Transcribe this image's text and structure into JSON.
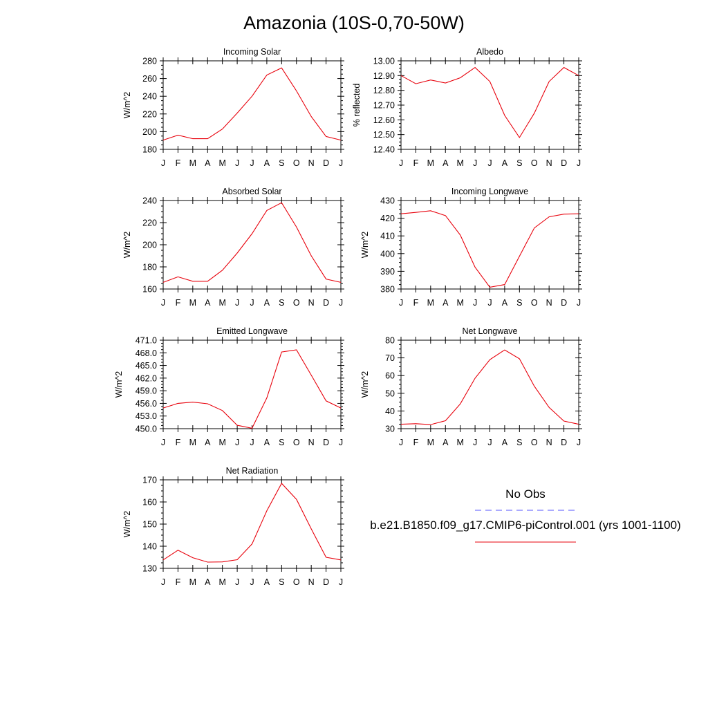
{
  "page": {
    "title": "Amazonia (10S-0,70-50W)"
  },
  "legend": {
    "obs_label": "No Obs",
    "obs_color": "#5555ff",
    "model_label": "b.e21.B1850.f09_g17.CMIP6-piControl.001 (yrs 1001-1100)",
    "model_color": "#e8000b"
  },
  "chart_data": [
    {
      "type": "line",
      "title": "Incoming Solar",
      "ylabel": "W/m^2",
      "categories": [
        "J",
        "F",
        "M",
        "A",
        "M",
        "J",
        "J",
        "A",
        "S",
        "O",
        "N",
        "D",
        "J"
      ],
      "values": [
        190.5,
        196,
        192,
        192,
        203,
        221,
        240,
        264,
        272,
        246,
        217,
        194.5,
        190.5
      ],
      "ylim": [
        180,
        280
      ],
      "yticks": [
        180,
        200,
        220,
        240,
        260,
        280
      ],
      "ytick_labels": [
        "180",
        "200",
        "220",
        "240",
        "260",
        "280"
      ]
    },
    {
      "type": "line",
      "title": "Albedo",
      "ylabel": "% reflected",
      "categories": [
        "J",
        "F",
        "M",
        "A",
        "M",
        "J",
        "J",
        "A",
        "S",
        "O",
        "N",
        "D",
        "J"
      ],
      "values": [
        12.9,
        12.845,
        12.87,
        12.85,
        12.885,
        12.955,
        12.86,
        12.63,
        12.48,
        12.645,
        12.86,
        12.955,
        12.9
      ],
      "ylim": [
        12.4,
        13.0
      ],
      "yticks": [
        12.4,
        12.5,
        12.6,
        12.7,
        12.8,
        12.9,
        13.0
      ],
      "ytick_labels": [
        "12.40",
        "12.50",
        "12.60",
        "12.70",
        "12.80",
        "12.90",
        "13.00"
      ]
    },
    {
      "type": "line",
      "title": "Absorbed Solar",
      "ylabel": "W/m^2",
      "categories": [
        "J",
        "F",
        "M",
        "A",
        "M",
        "J",
        "J",
        "A",
        "S",
        "O",
        "N",
        "D",
        "J"
      ],
      "values": [
        166,
        171,
        167,
        167,
        177,
        192.5,
        210,
        231,
        238,
        216,
        190,
        169,
        166
      ],
      "ylim": [
        160,
        240
      ],
      "yticks": [
        160,
        180,
        200,
        220,
        240
      ],
      "ytick_labels": [
        "160",
        "180",
        "200",
        "220",
        "240"
      ]
    },
    {
      "type": "line",
      "title": "Incoming Longwave",
      "ylabel": "W/m^2",
      "categories": [
        "J",
        "F",
        "M",
        "A",
        "M",
        "J",
        "J",
        "A",
        "S",
        "O",
        "N",
        "D",
        "J"
      ],
      "values": [
        422.5,
        423.3,
        424.2,
        421.5,
        410.5,
        392.3,
        381,
        382.5,
        398.5,
        414.5,
        420.8,
        422.3,
        422.5
      ],
      "ylim": [
        380,
        430
      ],
      "yticks": [
        380,
        390,
        400,
        410,
        420,
        430
      ],
      "ytick_labels": [
        "380",
        "390",
        "400",
        "410",
        "420",
        "430"
      ]
    },
    {
      "type": "line",
      "title": "Emitted Longwave",
      "ylabel": "W/m^2",
      "categories": [
        "J",
        "F",
        "M",
        "A",
        "M",
        "J",
        "J",
        "A",
        "S",
        "O",
        "N",
        "D",
        "J"
      ],
      "values": [
        454.9,
        456.0,
        456.3,
        455.9,
        454.3,
        450.8,
        450.1,
        457.3,
        468.2,
        468.7,
        462.7,
        456.6,
        454.9
      ],
      "ylim": [
        450,
        471
      ],
      "yticks": [
        450,
        453,
        456,
        459,
        462,
        465,
        468,
        471
      ],
      "ytick_labels": [
        "450.0",
        "453.0",
        "456.0",
        "459.0",
        "462.0",
        "465.0",
        "468.0",
        "471.0"
      ]
    },
    {
      "type": "line",
      "title": "Net Longwave",
      "ylabel": "W/m^2",
      "categories": [
        "J",
        "F",
        "M",
        "A",
        "M",
        "J",
        "J",
        "A",
        "S",
        "O",
        "N",
        "D",
        "J"
      ],
      "values": [
        32.5,
        32.8,
        32.3,
        34.5,
        44,
        58.5,
        69,
        74.5,
        69.5,
        54,
        42,
        34.3,
        32.5
      ],
      "ylim": [
        30,
        80
      ],
      "yticks": [
        30,
        40,
        50,
        60,
        70,
        80
      ],
      "ytick_labels": [
        "30",
        "40",
        "50",
        "60",
        "70",
        "80"
      ]
    },
    {
      "type": "line",
      "title": "Net Radiation",
      "ylabel": "W/m^2",
      "categories": [
        "J",
        "F",
        "M",
        "A",
        "M",
        "J",
        "J",
        "A",
        "S",
        "O",
        "N",
        "D",
        "J"
      ],
      "values": [
        133.8,
        138.2,
        134.8,
        132.8,
        132.9,
        133.9,
        141,
        156,
        168.4,
        161.2,
        147.8,
        135,
        133.8
      ],
      "ylim": [
        130,
        170
      ],
      "yticks": [
        130,
        140,
        150,
        160,
        170
      ],
      "ytick_labels": [
        "130",
        "140",
        "150",
        "160",
        "170"
      ]
    }
  ]
}
